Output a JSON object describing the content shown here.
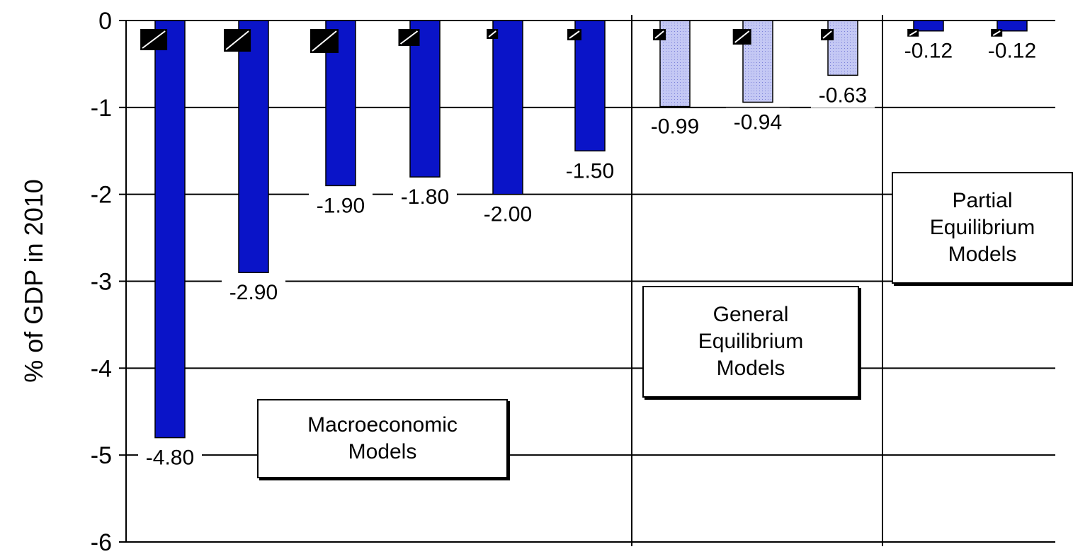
{
  "chart_data": {
    "type": "bar",
    "ylabel": "% of GDP in 2010",
    "ylim": [
      -6,
      0
    ],
    "yticks": [
      0,
      -1,
      -2,
      -3,
      -4,
      -5,
      -6
    ],
    "grid": true,
    "series": [
      {
        "values": [
          -4.8,
          -2.9,
          -1.9,
          -1.8,
          -2.0,
          -1.5,
          -0.99,
          -0.94,
          -0.63,
          -0.12,
          -0.12
        ],
        "labels": [
          "-4.80",
          "-2.90",
          "-1.90",
          "-1.80",
          "-2.00",
          "-1.50",
          "-0.99",
          "-0.94",
          "-0.63",
          "-0.12",
          "-0.12"
        ],
        "groups": [
          "macro",
          "macro",
          "macro",
          "macro",
          "macro",
          "macro",
          "general",
          "general",
          "general",
          "partial",
          "partial"
        ]
      }
    ],
    "groups": [
      {
        "id": "macro",
        "label_lines": [
          "Macroeconomic",
          "Models"
        ],
        "bar_color": "#0a14c8"
      },
      {
        "id": "general",
        "label_lines": [
          "General",
          "Equilibrium",
          "Models"
        ],
        "bar_color": "#b8bcf0"
      },
      {
        "id": "partial",
        "label_lines": [
          "Partial",
          "Equilibrium",
          "Models"
        ],
        "bar_color": "#0a14c8"
      }
    ]
  }
}
